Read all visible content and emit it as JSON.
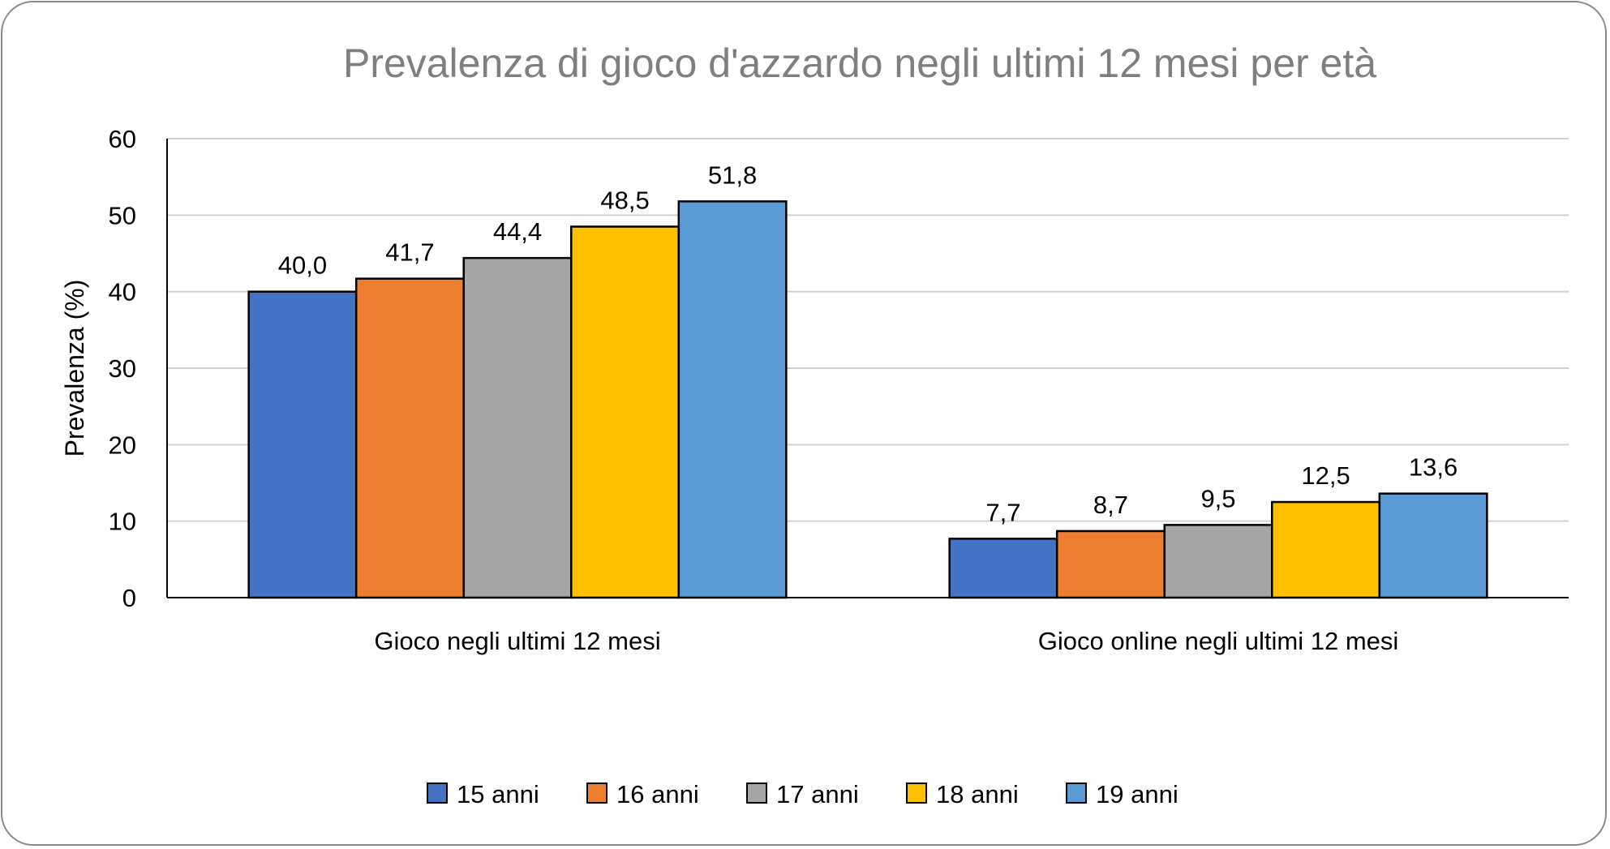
{
  "chart_data": {
    "type": "bar",
    "title": "Prevalenza di gioco d'azzardo negli ultimi 12 mesi per età",
    "xlabel": "",
    "ylabel": "Prevalenza (%)",
    "ylim": [
      0,
      60
    ],
    "yticks": [
      0,
      10,
      20,
      30,
      40,
      50,
      60
    ],
    "grid": true,
    "legend_position": "bottom",
    "categories": [
      "Gioco negli ultimi 12 mesi",
      "Gioco online negli ultimi 12 mesi"
    ],
    "series": [
      {
        "name": "15 anni",
        "color": "#4472C4",
        "values": [
          40.0,
          7.7
        ],
        "labels": [
          "40,0",
          "7,7"
        ]
      },
      {
        "name": "16 anni",
        "color": "#ED7D31",
        "values": [
          41.7,
          8.7
        ],
        "labels": [
          "41,7",
          "8,7"
        ]
      },
      {
        "name": "17 anni",
        "color": "#A5A5A5",
        "values": [
          44.4,
          9.5
        ],
        "labels": [
          "44,4",
          "9,5"
        ]
      },
      {
        "name": "18 anni",
        "color": "#FFC000",
        "values": [
          48.5,
          12.5
        ],
        "labels": [
          "48,5",
          "12,5"
        ]
      },
      {
        "name": "19 anni",
        "color": "#5B9BD5",
        "values": [
          51.8,
          13.6
        ],
        "labels": [
          "51,8",
          "13,6"
        ]
      }
    ]
  }
}
